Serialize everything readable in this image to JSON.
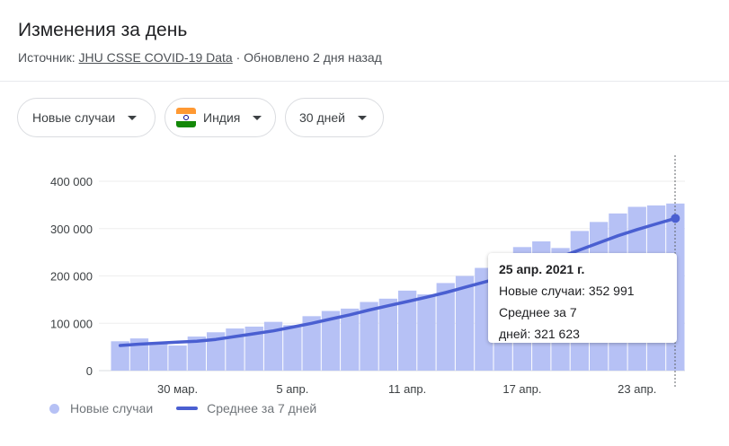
{
  "header": {
    "title": "Изменения за день",
    "source_prefix": "Источник: ",
    "source_link": "JHU CSSE COVID-19 Data",
    "updated": " · Обновлено 2 дня назад"
  },
  "filters": {
    "metric": "Новые случаи",
    "country": "Индия",
    "period": "30 дней"
  },
  "colors": {
    "bar": "#b6c1f5",
    "line": "#4a5fd1",
    "grid": "#eeeeee"
  },
  "tooltip": {
    "date": "25 апр. 2021 г.",
    "cases": "Новые случаи: 352 991",
    "avg_line1": "Среднее за 7",
    "avg_line2": "дней: 321 623"
  },
  "legend": {
    "bars": "Новые случаи",
    "line": "Среднее за 7 дней"
  },
  "chart_data": {
    "type": "bar",
    "x": [
      "2021-03-27",
      "2021-03-28",
      "2021-03-29",
      "2021-03-30",
      "2021-03-31",
      "2021-04-01",
      "2021-04-02",
      "2021-04-03",
      "2021-04-04",
      "2021-04-05",
      "2021-04-06",
      "2021-04-07",
      "2021-04-08",
      "2021-04-09",
      "2021-04-10",
      "2021-04-11",
      "2021-04-12",
      "2021-04-13",
      "2021-04-14",
      "2021-04-15",
      "2021-04-16",
      "2021-04-17",
      "2021-04-18",
      "2021-04-19",
      "2021-04-20",
      "2021-04-21",
      "2021-04-22",
      "2021-04-23",
      "2021-04-24",
      "2021-04-25"
    ],
    "series": [
      {
        "name": "Новые случаи",
        "type": "bar",
        "values": [
          62000,
          68000,
          56000,
          53000,
          72000,
          81000,
          89000,
          93000,
          103000,
          96000,
          115000,
          126000,
          131000,
          145000,
          152000,
          169000,
          161000,
          185000,
          200000,
          217000,
          234000,
          261000,
          273000,
          259000,
          295000,
          314000,
          332000,
          346000,
          349000,
          352991
        ]
      },
      {
        "name": "Среднее за 7 дней",
        "type": "line",
        "values": [
          53000,
          56000,
          58000,
          60000,
          62000,
          66000,
          72000,
          78000,
          84000,
          92000,
          100000,
          109000,
          118000,
          128000,
          137000,
          146000,
          155000,
          165000,
          176000,
          187000,
          198000,
          210000,
          225000,
          240000,
          255000,
          270000,
          285000,
          298000,
          310000,
          321623
        ]
      }
    ],
    "x_ticks": [
      {
        "index": 3,
        "label": "30 мар."
      },
      {
        "index": 9,
        "label": "5 апр."
      },
      {
        "index": 15,
        "label": "11 апр."
      },
      {
        "index": 21,
        "label": "17 апр."
      },
      {
        "index": 27,
        "label": "23 апр."
      }
    ],
    "y_ticks": [
      {
        "value": 0,
        "label": "0"
      },
      {
        "value": 100000,
        "label": "100 000"
      },
      {
        "value": 200000,
        "label": "200 000"
      },
      {
        "value": 300000,
        "label": "300 000"
      },
      {
        "value": 400000,
        "label": "400 000"
      }
    ],
    "ylim": [
      0,
      400000
    ],
    "grid": true,
    "hover_index": 29
  }
}
